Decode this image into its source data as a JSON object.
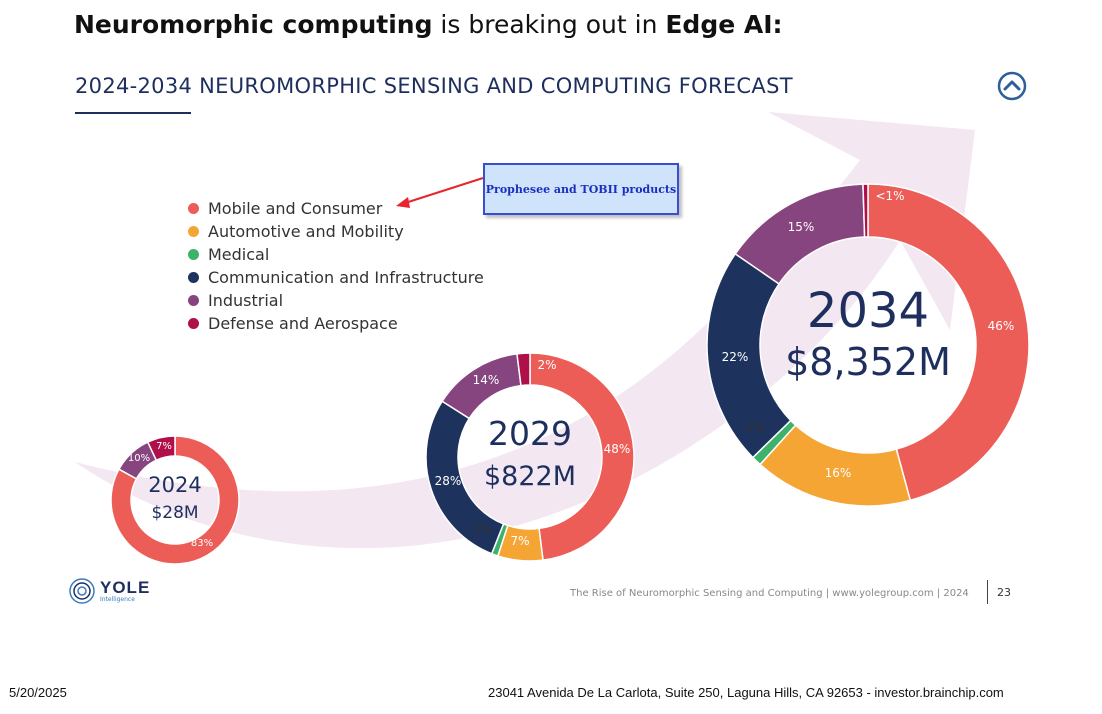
{
  "headline": {
    "bold1": "Neuromorphic computing",
    "middle": " is breaking out in ",
    "bold2": "Edge AI:"
  },
  "subtitle": "2024-2034 NEUROMORPHIC SENSING AND COMPUTING FORECAST",
  "callout": "Prophesee and TOBII products",
  "footer": {
    "logo_word": "YOLE",
    "logo_sub": "Intelligence",
    "line": "The Rise of Neuromorphic Sensing and Computing | www.yolegroup.com | 2024",
    "page": "23"
  },
  "bottom": {
    "date": "5/20/2025",
    "address": "23041 Avenida De La Carlota, Suite 250, Laguna Hills, CA 92653 - investor.brainchip.com"
  },
  "colors": {
    "navy": "#1e2f5e",
    "arrow": "#f3e7f1",
    "callout_arrow": "#e8242c"
  },
  "chart_data": {
    "type": "pie",
    "variant": "donut",
    "title": "2024-2034 NEUROMORPHIC SENSING AND COMPUTING FORECAST",
    "legend_position": "left",
    "categories": [
      {
        "name": "Mobile and Consumer",
        "color": "#ec5d57"
      },
      {
        "name": "Automotive and Mobility",
        "color": "#f5a534"
      },
      {
        "name": "Medical",
        "color": "#3cb26a"
      },
      {
        "name": "Communication and Infrastructure",
        "color": "#1e325e"
      },
      {
        "name": "Industrial",
        "color": "#87457f"
      },
      {
        "name": "Defense and Aerospace",
        "color": "#b0104a"
      }
    ],
    "donuts": [
      {
        "year": "2024",
        "total": "$28M",
        "values": [
          83,
          0,
          0,
          0,
          10,
          7
        ],
        "labels": [
          "83%",
          "",
          "",
          "",
          "10%",
          "7%"
        ]
      },
      {
        "year": "2029",
        "total": "$822M",
        "values": [
          48,
          7,
          1,
          28,
          14,
          2
        ],
        "labels": [
          "48%",
          "7%",
          "",
          "28%",
          "14%",
          "2%"
        ],
        "extra_labels": [
          "1%"
        ]
      },
      {
        "year": "2034",
        "total": "$8,352M",
        "values": [
          46,
          16,
          1,
          22,
          15,
          0.5
        ],
        "labels": [
          "46%",
          "16%",
          "1%",
          "22%",
          "15%",
          "<1%"
        ]
      }
    ]
  }
}
